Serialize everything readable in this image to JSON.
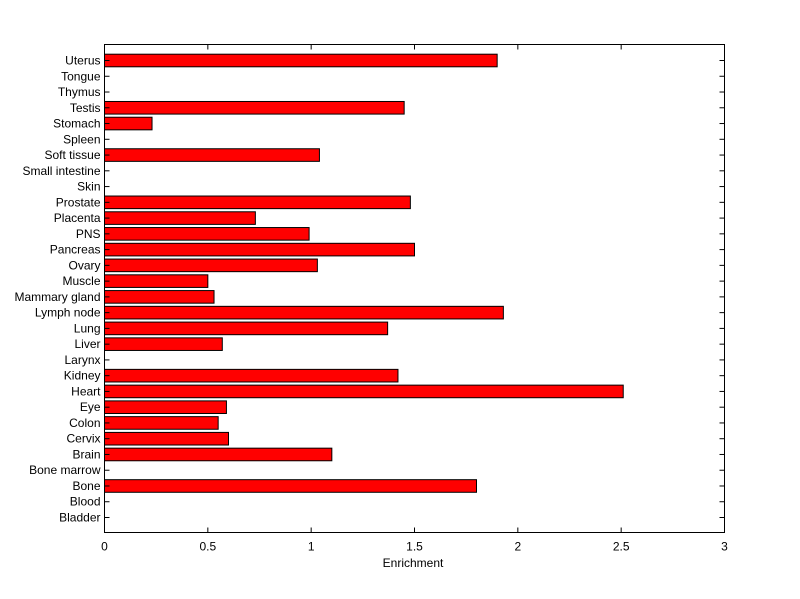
{
  "chart_data": {
    "type": "bar",
    "orientation": "horizontal",
    "title": "",
    "xlabel": "Enrichment",
    "ylabel": "",
    "xlim": [
      0,
      3
    ],
    "xticks": [
      "0",
      "0.5",
      "1",
      "1.5",
      "2",
      "2.5",
      "3"
    ],
    "grid": false,
    "bar_color": "#ff0000",
    "categories": [
      "Uterus",
      "Tongue",
      "Thymus",
      "Testis",
      "Stomach",
      "Spleen",
      "Soft tissue",
      "Small intestine",
      "Skin",
      "Prostate",
      "Placenta",
      "PNS",
      "Pancreas",
      "Ovary",
      "Muscle",
      "Mammary gland",
      "Lymph node",
      "Lung",
      "Liver",
      "Larynx",
      "Kidney",
      "Heart",
      "Eye",
      "Colon",
      "Cervix",
      "Brain",
      "Bone marrow",
      "Bone",
      "Blood",
      "Bladder"
    ],
    "values": [
      1.9,
      0,
      0,
      1.45,
      0.23,
      0,
      1.04,
      0,
      0,
      1.48,
      0.73,
      0.99,
      1.5,
      1.03,
      0.5,
      0.53,
      1.93,
      1.37,
      0.57,
      0,
      1.42,
      2.51,
      0.59,
      0.55,
      0.6,
      1.1,
      0,
      1.8,
      0,
      0
    ]
  }
}
